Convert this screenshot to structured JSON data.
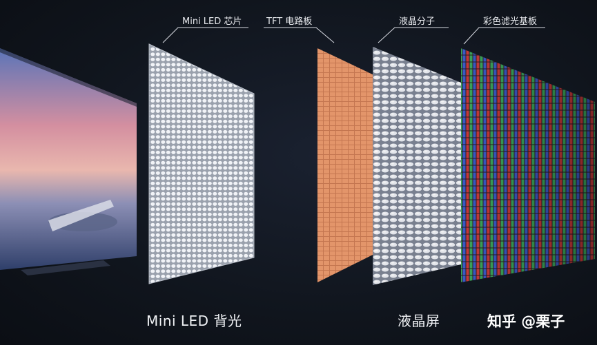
{
  "labels": {
    "mini_led_chip": "Mini LED 芯片",
    "tft_board": "TFT 电路板",
    "lc_molecules": "液晶分子",
    "color_filter": "彩色滤光基板"
  },
  "captions": {
    "backlight": "Mini LED 背光",
    "lcd": "液晶屏"
  },
  "watermark": "知乎 @栗子",
  "colors": {
    "background": "#0e1219",
    "tft": "#e8a070",
    "led": "#eef1f6",
    "filter_red": "#c63a3a",
    "filter_green": "#3aa55a",
    "filter_blue": "#3a5ac6"
  }
}
